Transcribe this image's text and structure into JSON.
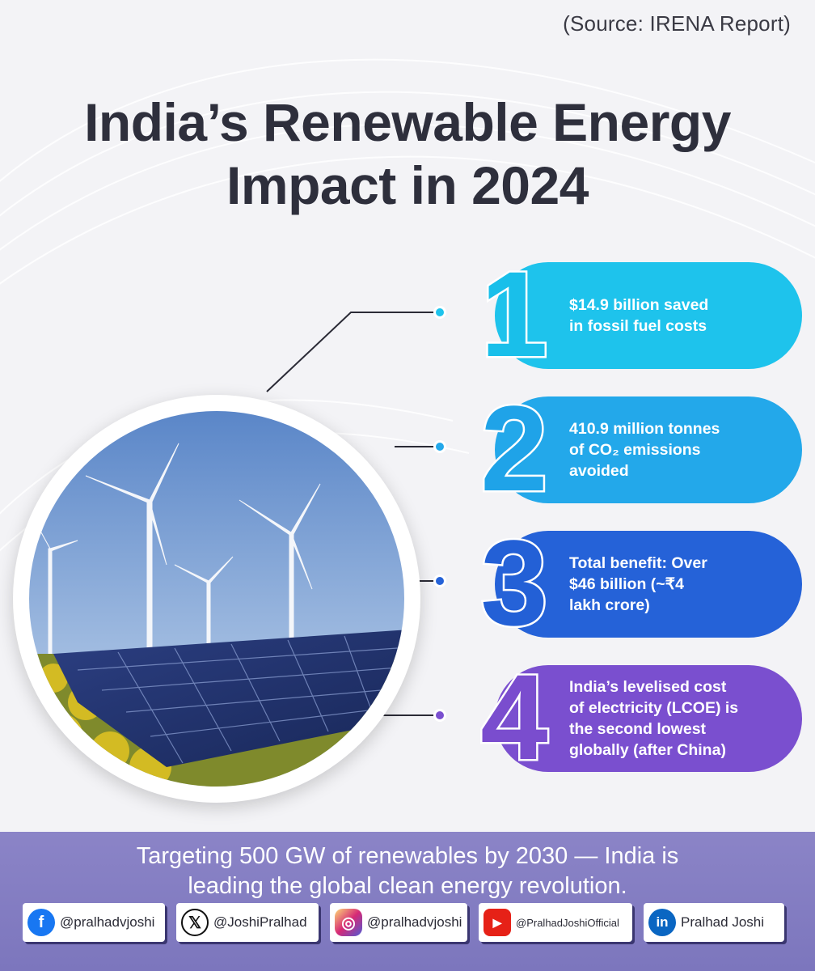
{
  "source": "(Source: IRENA Report)",
  "title": {
    "line1": "India’s Renewable Energy",
    "line2": "Impact in 2024"
  },
  "photo": {
    "description_icon": "solar-wind-icon"
  },
  "stats": [
    {
      "number": "1",
      "lines": [
        "$14.9 billion saved",
        "in fossil fuel costs"
      ],
      "color": "#1ec3ec"
    },
    {
      "number": "2",
      "lines": [
        "410.9 million tonnes",
        "of CO₂ emissions",
        "avoided"
      ],
      "color": "#23a8ea"
    },
    {
      "number": "3",
      "lines": [
        "Total benefit: Over",
        "$46 billion (~₹4",
        "lakh crore)"
      ],
      "color": "#2562d8"
    },
    {
      "number": "4",
      "lines": [
        "India’s levelised cost",
        "of electricity (LCOE) is",
        "the second lowest",
        "globally (after China)"
      ],
      "color": "#7a4fcf"
    }
  ],
  "tagline": {
    "line1": "Targeting 500 GW of renewables by 2030 — India is",
    "line2": "leading the global clean energy revolution."
  },
  "socials": [
    {
      "icon": "facebook-icon",
      "handle": "@pralhadvjoshi",
      "color": "#1877f2"
    },
    {
      "icon": "x-icon",
      "handle": "@JoshiPralhad",
      "color": "#111111"
    },
    {
      "icon": "instagram-icon",
      "handle": "@pralhadvjoshi",
      "color": "#d62976"
    },
    {
      "icon": "youtube-icon",
      "handle": "@PralhadJoshiOfficial",
      "color": "#e62117"
    },
    {
      "icon": "linkedin-icon",
      "handle": "Pralhad Joshi",
      "color": "#0a66c2"
    }
  ]
}
